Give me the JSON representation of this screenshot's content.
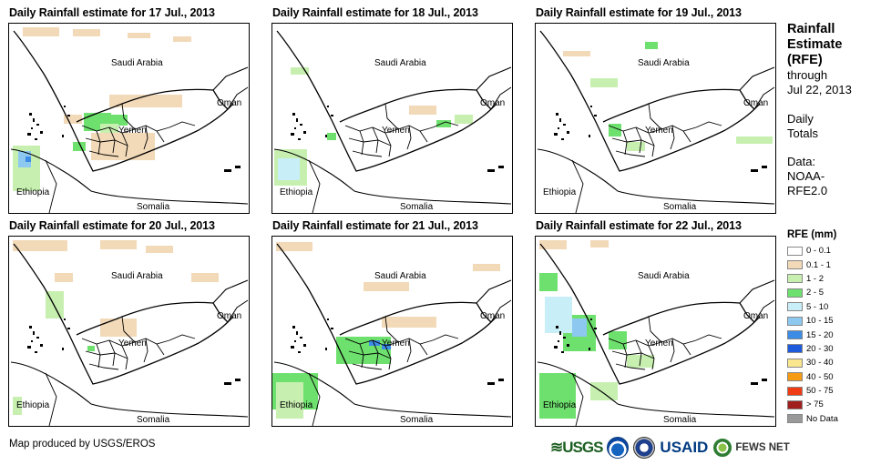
{
  "panels": [
    {
      "title": "Daily Rainfall estimate for 17 Jul., 2013"
    },
    {
      "title": "Daily Rainfall estimate for 18 Jul., 2013"
    },
    {
      "title": "Daily Rainfall estimate for 19 Jul., 2013"
    },
    {
      "title": "Daily Rainfall estimate for 20 Jul., 2013"
    },
    {
      "title": "Daily Rainfall estimate for 21 Jul., 2013"
    },
    {
      "title": "Daily Rainfall estimate for 22 Jul., 2013"
    }
  ],
  "places": {
    "saudi": "Saudi Arabia",
    "oman": "Oman",
    "yemen": "Yemen",
    "ethiopia": "Ethiopia",
    "somalia": "Somalia"
  },
  "sidebar": {
    "title_1": "Rainfall",
    "title_2": "Estimate",
    "title_3": "(RFE)",
    "through": "through",
    "date": "Jul 22, 2013",
    "daily": "Daily",
    "totals": "Totals",
    "data": "Data:",
    "noaa": "NOAA-",
    "rfe": "RFE2.0"
  },
  "legend": {
    "title": "RFE (mm)",
    "items": [
      {
        "label": "0 - 0.1",
        "color": "#ffffff"
      },
      {
        "label": "0.1 - 1",
        "color": "#f2d9b8"
      },
      {
        "label": "1 - 2",
        "color": "#c7f0b0"
      },
      {
        "label": "2 - 5",
        "color": "#6ee06e"
      },
      {
        "label": "5 - 10",
        "color": "#c8eef8"
      },
      {
        "label": "10 - 15",
        "color": "#8cc8f0"
      },
      {
        "label": "15 - 20",
        "color": "#3c8ce6"
      },
      {
        "label": "20 - 30",
        "color": "#1e5adc"
      },
      {
        "label": "30 - 40",
        "color": "#fae68c"
      },
      {
        "label": "40 - 50",
        "color": "#f59b14"
      },
      {
        "label": "50 - 75",
        "color": "#f03c14"
      },
      {
        "label": "> 75",
        "color": "#a01e1e"
      },
      {
        "label": "No Data",
        "color": "#999999"
      }
    ]
  },
  "footer": {
    "credit": "Map produced by USGS/EROS"
  },
  "logos": {
    "usgs": "≋USGS",
    "usaid": "USAID",
    "fews": "FEWS NET"
  }
}
